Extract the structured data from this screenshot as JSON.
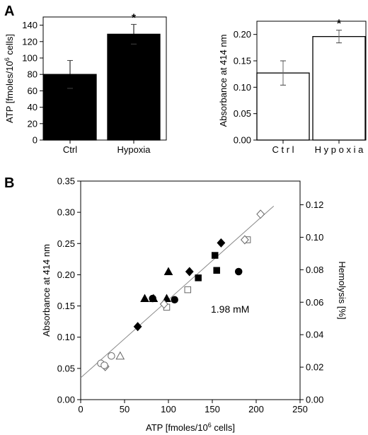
{
  "panel_labels": {
    "a": "A",
    "b": "B"
  },
  "chart_data": [
    {
      "type": "bar",
      "categories": [
        "Ctrl",
        "Hypoxia"
      ],
      "values": [
        80,
        129
      ],
      "errors": [
        17,
        12
      ],
      "ylabel": "ATP [fmoles/10⁶ cells]",
      "ylabel_parts": {
        "main": "ATP [fmoles/10",
        "sup": "6",
        "end": " cells]"
      },
      "ylim": [
        0,
        150
      ],
      "yticks": [
        "0",
        "20",
        "40",
        "60",
        "80",
        "100",
        "120",
        "140"
      ],
      "bar_color": "#000000",
      "significance_marker": "*"
    },
    {
      "type": "bar",
      "categories": [
        "C t r l",
        "H y p o x i a"
      ],
      "values": [
        0.127,
        0.196
      ],
      "errors": [
        0.023,
        0.012
      ],
      "ylabel": "Absorbance at 414 nm",
      "ylim": [
        0,
        0.225
      ],
      "yticks": [
        "0.00",
        "0.05",
        "0.10",
        "0.15",
        "0.20"
      ],
      "bar_color": "#ffffff",
      "significance_marker": "*"
    },
    {
      "type": "scatter",
      "xlabel": "ATP [fmoles/10⁶ cells]",
      "xlabel_parts": {
        "main": "ATP [fmoles/10",
        "sup": "6",
        "end": " cells]"
      },
      "ylabel": "Absorbance at 414 nm",
      "y2label": "Hemolysis [%]",
      "xlim": [
        0,
        250
      ],
      "ylim": [
        0,
        0.35
      ],
      "y2lim": [
        0,
        0.1346
      ],
      "xticks": [
        "0",
        "50",
        "100",
        "150",
        "200",
        "250"
      ],
      "yticks": [
        "0.00",
        "0.05",
        "0.10",
        "0.15",
        "0.20",
        "0.25",
        "0.30",
        "0.35"
      ],
      "y2ticks": [
        "0.00",
        "0.02",
        "0.04",
        "0.06",
        "0.08",
        "0.10",
        "0.12"
      ],
      "annotation": "1.98 mM",
      "fit_line": {
        "x": [
          0,
          220
        ],
        "y": [
          0.035,
          0.31
        ]
      },
      "series": [
        {
          "marker": "filled-triangle",
          "points": [
            [
              73,
              0.162
            ],
            [
              83,
              0.162
            ],
            [
              98,
              0.162
            ],
            [
              100,
              0.205
            ]
          ]
        },
        {
          "marker": "filled-circle",
          "points": [
            [
              82,
              0.162
            ],
            [
              107,
              0.16
            ],
            [
              180,
              0.205
            ]
          ]
        },
        {
          "marker": "filled-diamond",
          "points": [
            [
              65,
              0.117
            ],
            [
              124,
              0.205
            ],
            [
              160,
              0.251
            ]
          ]
        },
        {
          "marker": "filled-square",
          "points": [
            [
              134,
              0.195
            ],
            [
              153,
              0.231
            ],
            [
              155,
              0.207
            ]
          ]
        },
        {
          "marker": "open-square",
          "points": [
            [
              98,
              0.148
            ],
            [
              122,
              0.176
            ],
            [
              190,
              0.256
            ]
          ]
        },
        {
          "marker": "open-diamond",
          "points": [
            [
              28,
              0.053
            ],
            [
              95,
              0.153
            ],
            [
              187,
              0.256
            ],
            [
              205,
              0.297
            ]
          ]
        },
        {
          "marker": "open-circle",
          "points": [
            [
              23,
              0.058
            ],
            [
              27,
              0.055
            ],
            [
              35,
              0.07
            ]
          ]
        },
        {
          "marker": "open-triangle",
          "points": [
            [
              45,
              0.07
            ]
          ]
        }
      ]
    }
  ]
}
